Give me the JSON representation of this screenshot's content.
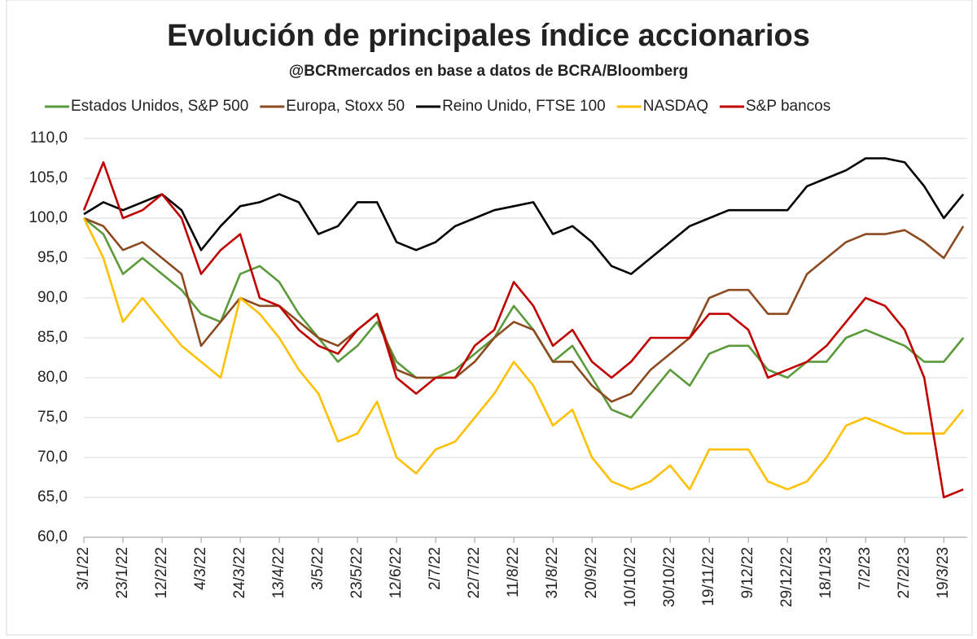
{
  "chart_data": {
    "type": "line",
    "title": "Evolución de principales índice accionarios",
    "subtitle": "@BCRmercados en base a datos de BCRA/Bloomberg",
    "x": [
      "3/1/22",
      "13/1/22",
      "23/1/22",
      "2/2/22",
      "12/2/22",
      "22/2/22",
      "4/3/22",
      "14/3/22",
      "24/3/22",
      "3/4/22",
      "13/4/22",
      "23/4/22",
      "3/5/22",
      "13/5/22",
      "23/5/22",
      "2/6/22",
      "12/6/22",
      "22/6/22",
      "2/7/22",
      "12/7/22",
      "22/7/22",
      "1/8/22",
      "11/8/22",
      "21/8/22",
      "31/8/22",
      "10/9/22",
      "20/9/22",
      "30/9/22",
      "10/10/22",
      "20/10/22",
      "30/10/22",
      "9/11/22",
      "19/11/22",
      "29/11/22",
      "9/12/22",
      "19/12/22",
      "29/12/22",
      "8/1/23",
      "18/1/23",
      "28/1/23",
      "7/2/23",
      "17/2/23",
      "27/2/23",
      "9/3/23",
      "19/3/23",
      "29/3/23"
    ],
    "series": [
      {
        "name": "Estados Unidos, S&P 500",
        "color": "#5b9a3b",
        "values": [
          100,
          98,
          93,
          95,
          93,
          91,
          88,
          87,
          93,
          94,
          92,
          88,
          85,
          82,
          84,
          87,
          82,
          80,
          80,
          81,
          83,
          85,
          89,
          86,
          82,
          84,
          80,
          76,
          75,
          78,
          81,
          79,
          83,
          84,
          84,
          81,
          80,
          82,
          82,
          85,
          86,
          85,
          84,
          82,
          82,
          85
        ]
      },
      {
        "name": "Europa, Stoxx 50",
        "color": "#8b4a20",
        "values": [
          100,
          99,
          96,
          97,
          95,
          93,
          84,
          87,
          90,
          89,
          89,
          87,
          85,
          84,
          86,
          88,
          81,
          80,
          80,
          80,
          82,
          85,
          87,
          86,
          82,
          82,
          79,
          77,
          78,
          81,
          83,
          85,
          90,
          91,
          91,
          88,
          88,
          93,
          95,
          97,
          98,
          98,
          98.5,
          97,
          95,
          99
        ]
      },
      {
        "name": "Reino Unido, FTSE 100",
        "color": "#000000",
        "values": [
          100.5,
          102,
          101,
          102,
          103,
          101,
          96,
          99,
          101.5,
          102,
          103,
          102,
          98,
          99,
          102,
          102,
          97,
          96,
          97,
          99,
          100,
          101,
          101.5,
          102,
          98,
          99,
          97,
          94,
          93,
          95,
          97,
          99,
          100,
          101,
          101,
          101,
          101,
          104,
          105,
          106,
          107.5,
          107.5,
          107,
          104,
          100,
          103
        ]
      },
      {
        "name": "NASDAQ",
        "color": "#ffc000",
        "values": [
          100,
          95,
          87,
          90,
          87,
          84,
          82,
          80,
          90,
          88,
          85,
          81,
          78,
          72,
          73,
          77,
          70,
          68,
          71,
          72,
          75,
          78,
          82,
          79,
          74,
          76,
          70,
          67,
          66,
          67,
          69,
          66,
          71,
          71,
          71,
          67,
          66,
          67,
          70,
          74,
          75,
          74,
          73,
          73,
          73,
          76
        ]
      },
      {
        "name": "S&P bancos",
        "color": "#c00000",
        "values": [
          101,
          107,
          100,
          101,
          103,
          100,
          93,
          96,
          98,
          90,
          89,
          86,
          84,
          83,
          86,
          88,
          80,
          78,
          80,
          80,
          84,
          86,
          92,
          89,
          84,
          86,
          82,
          80,
          82,
          85,
          85,
          85,
          88,
          88,
          86,
          80,
          81,
          82,
          84,
          87,
          90,
          89,
          86,
          80,
          65,
          66
        ]
      }
    ],
    "xlim": [
      "3/1/22",
      "31/3/23"
    ],
    "xticks": [
      "3/1/22",
      "23/1/22",
      "12/2/22",
      "4/3/22",
      "24/3/22",
      "13/4/22",
      "3/5/22",
      "23/5/22",
      "12/6/22",
      "2/7/22",
      "22/7/22",
      "11/8/22",
      "31/8/22",
      "20/9/22",
      "10/10/22",
      "30/10/22",
      "19/11/22",
      "9/12/22",
      "29/12/22",
      "18/1/23",
      "7/2/23",
      "27/2/23",
      "19/3/23"
    ],
    "ylim": [
      60,
      110
    ],
    "yticks": [
      {
        "value": 60,
        "label": "60,0"
      },
      {
        "value": 65,
        "label": "65,0"
      },
      {
        "value": 70,
        "label": "70,0"
      },
      {
        "value": 75,
        "label": "75,0"
      },
      {
        "value": 80,
        "label": "80,0"
      },
      {
        "value": 85,
        "label": "85,0"
      },
      {
        "value": 90,
        "label": "90,0"
      },
      {
        "value": 95,
        "label": "95,0"
      },
      {
        "value": 100,
        "label": "100,0"
      },
      {
        "value": 105,
        "label": "105,0"
      },
      {
        "value": 110,
        "label": "110,0"
      }
    ],
    "grid": true,
    "legend": "top"
  }
}
